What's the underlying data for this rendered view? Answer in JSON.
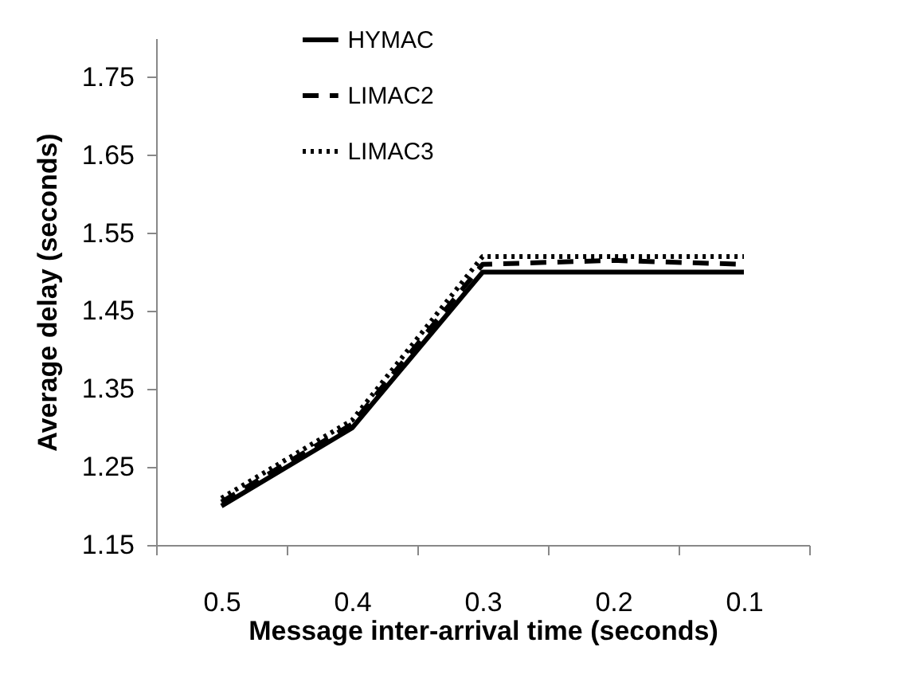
{
  "chart_data": {
    "type": "line",
    "xlabel": "Message inter-arrival time (seconds)",
    "ylabel": "Average delay (seconds)",
    "categories": [
      "0.5",
      "0.4",
      "0.3",
      "0.2",
      "0.1"
    ],
    "ylim": [
      1.15,
      1.8
    ],
    "yticks": [
      1.15,
      1.25,
      1.35,
      1.45,
      1.55,
      1.65,
      1.75
    ],
    "grid": false,
    "legend": "top",
    "marker": "none",
    "series": [
      {
        "name": "HYMAC",
        "color": "#000000",
        "line_style": "solid",
        "values": [
          1.2,
          1.3,
          1.5,
          1.5,
          1.5
        ]
      },
      {
        "name": "LIMAC2",
        "color": "#000000",
        "line_style": "dashed",
        "values": [
          1.205,
          1.305,
          1.51,
          1.515,
          1.51
        ]
      },
      {
        "name": "LIMAC3",
        "color": "#000000",
        "line_style": "dotted",
        "values": [
          1.21,
          1.31,
          1.52,
          1.52,
          1.52
        ]
      }
    ]
  }
}
